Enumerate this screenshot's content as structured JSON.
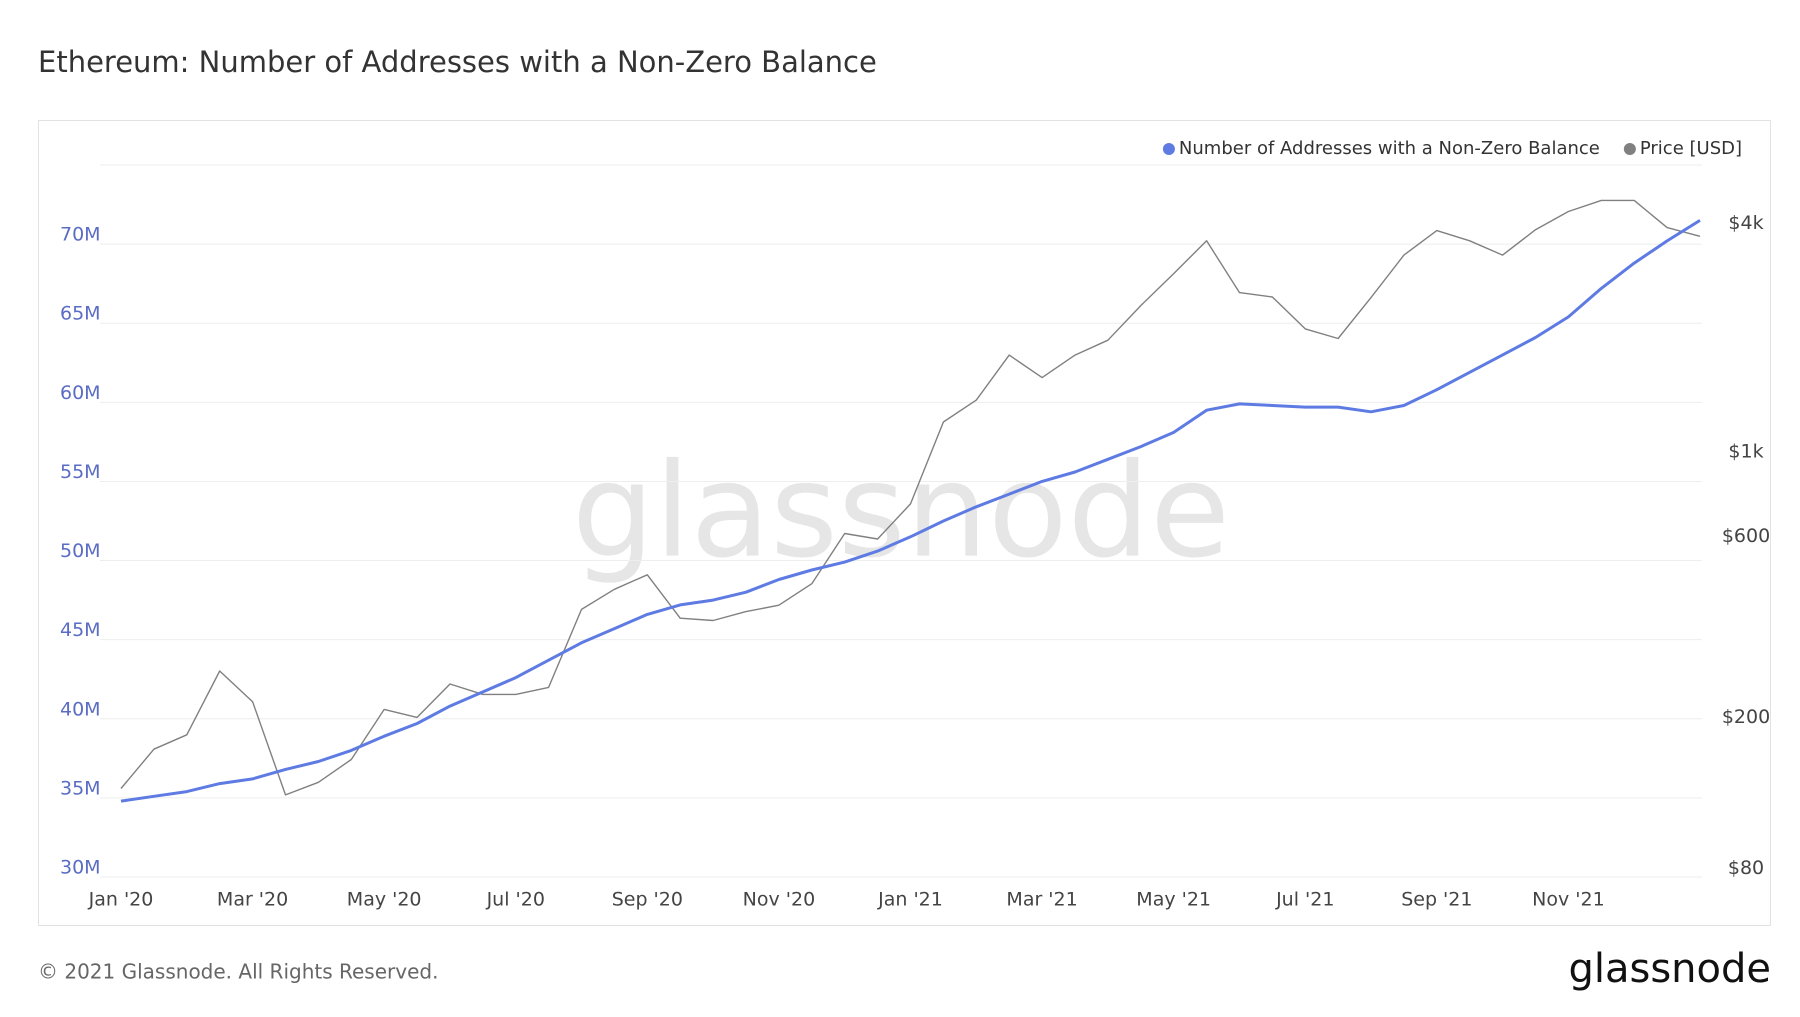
{
  "chart_data": {
    "type": "line",
    "title": "Ethereum: Number of Addresses with a Non-Zero Balance",
    "categories": [
      "Jan '20",
      null,
      null,
      null,
      "Mar '20",
      null,
      null,
      null,
      "May '20",
      null,
      null,
      null,
      "Jul '20",
      null,
      null,
      null,
      "Sep '20",
      null,
      null,
      null,
      "Nov '20",
      null,
      null,
      null,
      "Jan '21",
      null,
      null,
      null,
      "Mar '21",
      null,
      null,
      null,
      "May '21",
      null,
      null,
      null,
      "Jul '21",
      null,
      null,
      null,
      "Sep '21",
      null,
      null,
      null,
      "Nov '21",
      null,
      null,
      null,
      null
    ],
    "series": [
      {
        "name": "Number of Addresses with a Non-Zero Balance",
        "color": "#5e7be3",
        "values": [
          34.8,
          35.1,
          35.4,
          35.9,
          36.2,
          36.8,
          37.3,
          38.0,
          38.9,
          39.7,
          40.8,
          41.7,
          42.6,
          43.7,
          44.8,
          45.7,
          46.6,
          47.2,
          47.5,
          48.0,
          48.8,
          49.4,
          49.9,
          50.6,
          51.5,
          52.5,
          53.4,
          54.2,
          55.0,
          55.6,
          56.4,
          57.2,
          58.1,
          59.5,
          59.9,
          59.8,
          59.7,
          59.7,
          59.4,
          59.8,
          60.8,
          61.9,
          63.0,
          64.1,
          65.4,
          67.2,
          68.8,
          70.2,
          71.5
        ]
      },
      {
        "name": "Price [USD]",
        "color": "#808080",
        "axis": "y2",
        "values": [
          130,
          165,
          180,
          265,
          220,
          125,
          135,
          155,
          210,
          200,
          245,
          230,
          230,
          240,
          385,
          435,
          475,
          365,
          360,
          380,
          395,
          450,
          610,
          590,
          730,
          1200,
          1370,
          1800,
          1570,
          1800,
          1970,
          2430,
          2950,
          3600,
          2630,
          2560,
          2110,
          1990,
          2550,
          3300,
          3830,
          3600,
          3300,
          3850,
          4300,
          4600,
          4600,
          3900,
          3700
        ]
      }
    ],
    "ylim": [
      30,
      75
    ],
    "yticks": [
      {
        "value": 30,
        "label": "30M"
      },
      {
        "value": 35,
        "label": "35M"
      },
      {
        "value": 40,
        "label": "40M"
      },
      {
        "value": 45,
        "label": "45M"
      },
      {
        "value": 50,
        "label": "50M"
      },
      {
        "value": 55,
        "label": "55M"
      },
      {
        "value": 60,
        "label": "60M"
      },
      {
        "value": 65,
        "label": "65M"
      },
      {
        "value": 70,
        "label": "70M"
      }
    ],
    "y2lim": [
      76,
      5700
    ],
    "y2scale": "log",
    "y2ticks": [
      {
        "value": 80,
        "label": "$80"
      },
      {
        "value": 200,
        "label": "$200"
      },
      {
        "value": 600,
        "label": "$600"
      },
      {
        "value": 1000,
        "label": "$1k"
      },
      {
        "value": 4000,
        "label": "$4k"
      }
    ],
    "grid": true,
    "legend": "top-right"
  },
  "watermark": "glassnode",
  "footer": "© 2021 Glassnode. All Rights Reserved.",
  "logo": "glassnode"
}
